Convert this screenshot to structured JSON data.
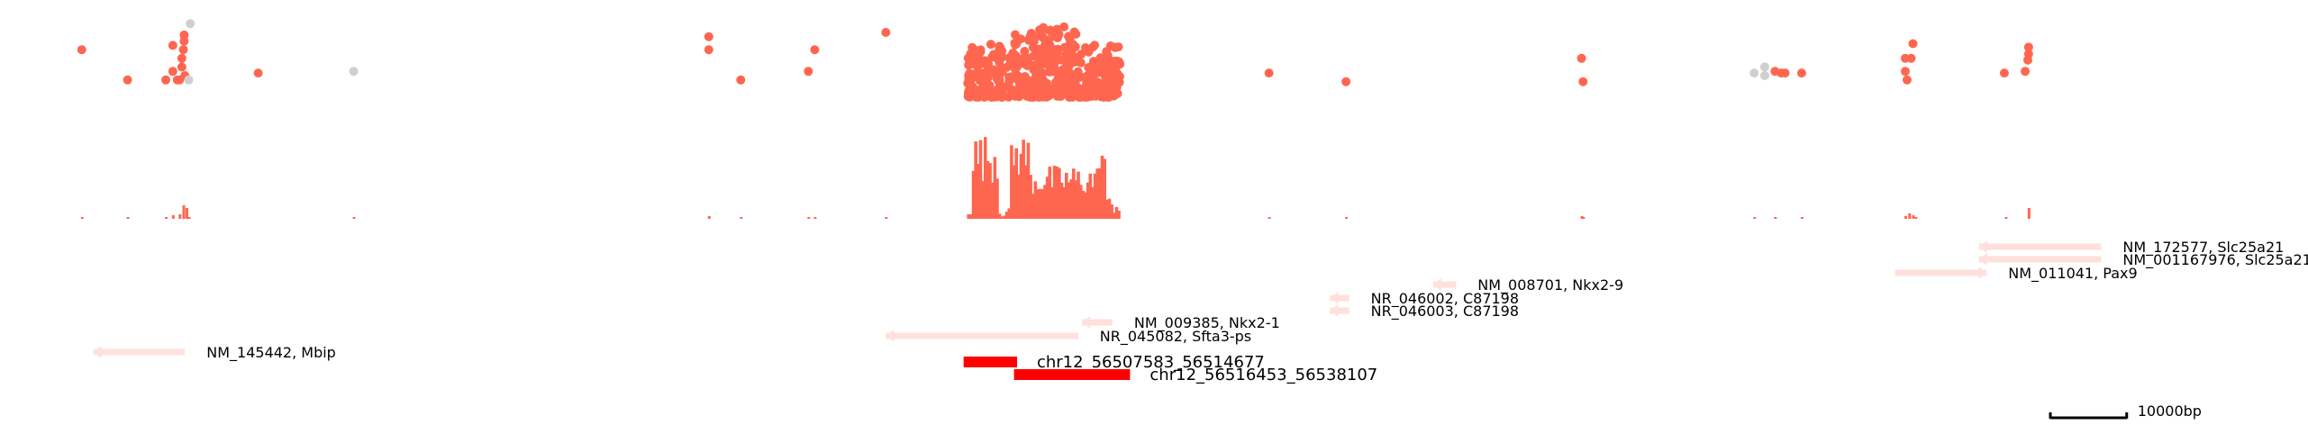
{
  "colors": {
    "point": "#ff6650",
    "point_gray": "#cfcfcf",
    "bar": "#ff6650",
    "gene": "#ffe0dc",
    "region": "#ff0000",
    "scale": "#000000"
  },
  "chart_data": {
    "type": "genome-browser",
    "x_unit": "bp",
    "x_range": [
      56308000,
      56603000
    ],
    "scalebar": {
      "length_bp": 10000,
      "label": "10000bp"
    },
    "points": [
      {
        "x": 56313990,
        "y": 0.55
      },
      {
        "x": 56319990,
        "y": 0.2
      },
      {
        "x": 56325000,
        "y": 0.2
      },
      {
        "x": 56325920,
        "y": 0.6
      },
      {
        "x": 56325920,
        "y": 0.3
      },
      {
        "x": 56326500,
        "y": 0.2
      },
      {
        "x": 56326800,
        "y": 0.2
      },
      {
        "x": 56327100,
        "y": 0.35
      },
      {
        "x": 56327100,
        "y": 0.45
      },
      {
        "x": 56327300,
        "y": 0.55
      },
      {
        "x": 56327400,
        "y": 0.65
      },
      {
        "x": 56327400,
        "y": 0.72
      },
      {
        "x": 56327500,
        "y": 0.25
      },
      {
        "x": 56337100,
        "y": 0.28
      },
      {
        "x": 56396120,
        "y": 0.7
      },
      {
        "x": 56396120,
        "y": 0.55
      },
      {
        "x": 56400310,
        "y": 0.2
      },
      {
        "x": 56409160,
        "y": 0.3
      },
      {
        "x": 56410000,
        "y": 0.55
      },
      {
        "x": 56419310,
        "y": 0.75
      },
      {
        "x": 56469500,
        "y": 0.28
      },
      {
        "x": 56479590,
        "y": 0.18
      },
      {
        "x": 56510440,
        "y": 0.45
      },
      {
        "x": 56510640,
        "y": 0.18
      },
      {
        "x": 56535780,
        "y": 0.3
      },
      {
        "x": 56536600,
        "y": 0.28
      },
      {
        "x": 56537100,
        "y": 0.28
      },
      {
        "x": 56539270,
        "y": 0.28
      },
      {
        "x": 56552850,
        "y": 0.45
      },
      {
        "x": 56553080,
        "y": 0.2
      },
      {
        "x": 56553620,
        "y": 0.45
      },
      {
        "x": 56553850,
        "y": 0.62
      },
      {
        "x": 56552850,
        "y": 0.3
      },
      {
        "x": 56565820,
        "y": 0.28
      },
      {
        "x": 56568550,
        "y": 0.3
      },
      {
        "x": 56569000,
        "y": 0.5
      },
      {
        "x": 56569000,
        "y": 0.58
      },
      {
        "x": 56568900,
        "y": 0.43
      }
    ],
    "gray_points": [
      {
        "x": 56328200,
        "y": 0.85
      },
      {
        "x": 56328000,
        "y": 0.2
      },
      {
        "x": 56349600,
        "y": 0.3
      },
      {
        "x": 56533050,
        "y": 0.28
      },
      {
        "x": 56534440,
        "y": 0.35
      },
      {
        "x": 56534440,
        "y": 0.25
      }
    ],
    "bars": [
      {
        "x": 56313990,
        "v": 0.02
      },
      {
        "x": 56319990,
        "v": 0.02
      },
      {
        "x": 56325000,
        "v": 0.02
      },
      {
        "x": 56325920,
        "v": 0.04
      },
      {
        "x": 56326800,
        "v": 0.05
      },
      {
        "x": 56327300,
        "v": 0.15
      },
      {
        "x": 56327700,
        "v": 0.12
      },
      {
        "x": 56328000,
        "v": 0.02
      },
      {
        "x": 56349600,
        "v": 0.01
      },
      {
        "x": 56396120,
        "v": 0.03
      },
      {
        "x": 56400310,
        "v": 0.02
      },
      {
        "x": 56409160,
        "v": 0.02
      },
      {
        "x": 56410000,
        "v": 0.02
      },
      {
        "x": 56419310,
        "v": 0.02
      },
      {
        "x": 56469500,
        "v": 0.02
      },
      {
        "x": 56479590,
        "v": 0.02
      },
      {
        "x": 56510440,
        "v": 0.03
      },
      {
        "x": 56510640,
        "v": 0.02
      },
      {
        "x": 56533050,
        "v": 0.01
      },
      {
        "x": 56535780,
        "v": 0.02
      },
      {
        "x": 56539270,
        "v": 0.02
      },
      {
        "x": 56552850,
        "v": 0.03
      },
      {
        "x": 56553350,
        "v": 0.06
      },
      {
        "x": 56553850,
        "v": 0.04
      },
      {
        "x": 56554200,
        "v": 0.02
      },
      {
        "x": 56566000,
        "v": 0.02
      },
      {
        "x": 56569000,
        "v": 0.12
      }
    ],
    "dense_region": {
      "start": 56430000,
      "end": 56450000
    },
    "genes": [
      {
        "label": "NM_145442, Mbip",
        "start": 56315500,
        "end": 56327500,
        "strand": "-",
        "row": 8
      },
      {
        "label": "NR_045082, Sfta3-ps",
        "start": 56419300,
        "end": 56444500,
        "strand": "-",
        "row": 7
      },
      {
        "label": "NM_009385, Nkx2-1",
        "start": 56445000,
        "end": 56449000,
        "strand": "-",
        "row": 6
      },
      {
        "label": "NR_046003, C87198",
        "start": 56477500,
        "end": 56480000,
        "strand": "-",
        "row": 5
      },
      {
        "label": "NR_046002, C87198",
        "start": 56477500,
        "end": 56480000,
        "strand": "-",
        "row": 4
      },
      {
        "label": "NM_008701, Nkx2-9",
        "start": 56491000,
        "end": 56494000,
        "strand": "-",
        "row": 3
      },
      {
        "label": "NM_011041, Pax9",
        "start": 56551500,
        "end": 56563500,
        "strand": "+",
        "row": 2
      },
      {
        "label": "NM_001167976, Slc25a21",
        "start": 56562500,
        "end": 56578500,
        "strand": "-",
        "row": 1
      },
      {
        "label": "NM_172577, Slc25a21",
        "start": 56562500,
        "end": 56578500,
        "strand": "-",
        "row": 0
      }
    ],
    "regions": [
      {
        "label": "chr12_56507583_56514677",
        "start": 56429500,
        "end": 56436500,
        "row": 0
      },
      {
        "label": "chr12_56516453_56538107",
        "start": 56436100,
        "end": 56451300,
        "row": 1
      }
    ]
  }
}
